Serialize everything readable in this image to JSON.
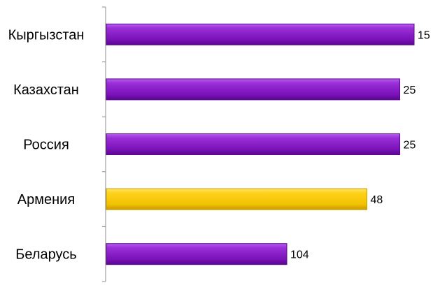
{
  "chart_data": {
    "type": "bar",
    "orientation": "horizontal",
    "categories": [
      "Кыргызстан",
      "Казахстан",
      "Россия",
      "Армения",
      "Беларусь"
    ],
    "values": [
      15,
      25,
      25,
      48,
      104
    ],
    "bar_colors": [
      "#8a1fc4",
      "#8a1fc4",
      "#8a1fc4",
      "#f5c800",
      "#8a1fc4"
    ],
    "x_axis_reversed": true,
    "grid": false,
    "legend": "none"
  }
}
